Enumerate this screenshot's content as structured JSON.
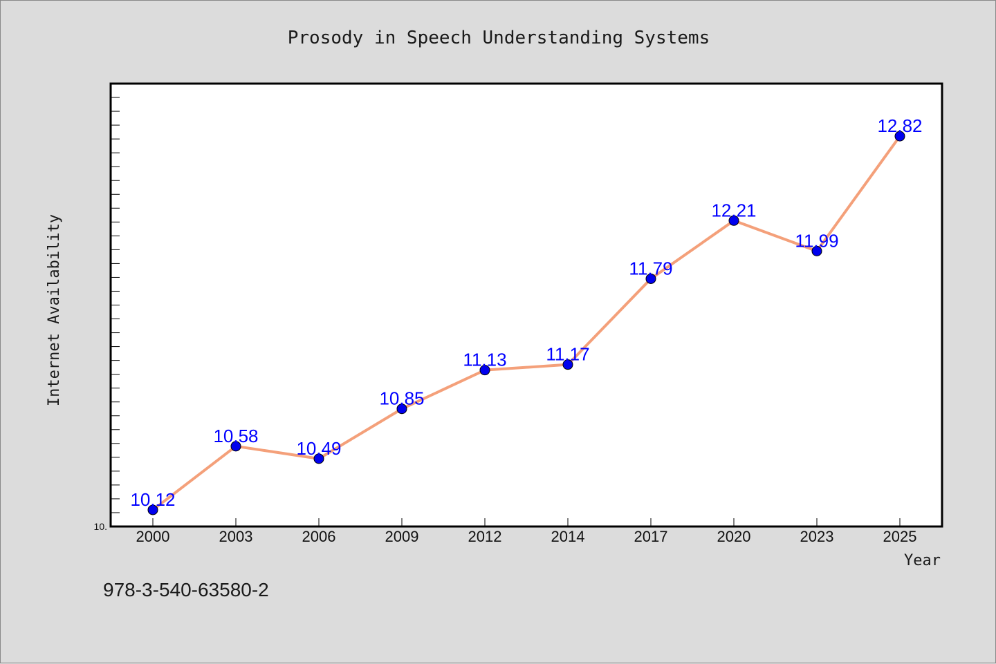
{
  "chart_data": {
    "type": "line",
    "title": "Prosody in Speech Understanding Systems",
    "xlabel": "Year",
    "ylabel": "Internet Availability",
    "categories": [
      "2000",
      "2003",
      "2006",
      "2009",
      "2012",
      "2014",
      "2017",
      "2020",
      "2023",
      "2025"
    ],
    "series": [
      {
        "values": [
          10.12,
          10.58,
          10.49,
          10.85,
          11.13,
          11.17,
          11.79,
          12.21,
          11.99,
          12.82
        ],
        "labels": [
          "10.12",
          "10.58",
          "10.49",
          "10.85",
          "11.13",
          "11.17",
          "11.79",
          "12.21",
          "11.99",
          "12.82"
        ]
      }
    ],
    "ylim": [
      10.0,
      13.2
    ],
    "y_tick_labels": [
      "10."
    ],
    "grid": false,
    "legend": "none",
    "colors": {
      "line": "#f4a07a",
      "marker": "#0000ee",
      "label": "#0000ff",
      "plot_background": "#ffffff",
      "page_background": "#dcdcdc"
    }
  },
  "footer": {
    "isbn": "978-3-540-63580-2"
  }
}
